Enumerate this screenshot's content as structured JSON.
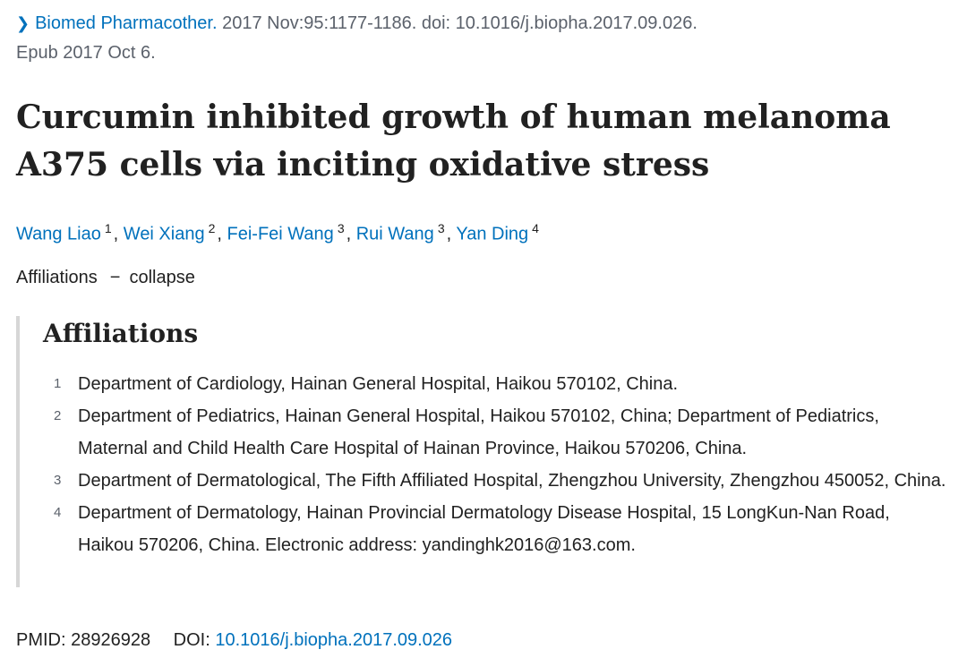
{
  "citation": {
    "journal": "Biomed Pharmacother.",
    "details": "2017 Nov:95:1177-1186. doi: 10.1016/j.biopha.2017.09.026.",
    "epub": "Epub 2017 Oct 6."
  },
  "title": "Curcumin inhibited growth of human melanoma A375 cells via inciting oxidative stress",
  "authors": [
    {
      "name": "Wang Liao",
      "aff": "1"
    },
    {
      "name": "Wei Xiang",
      "aff": "2"
    },
    {
      "name": "Fei-Fei Wang",
      "aff": "3"
    },
    {
      "name": "Rui Wang",
      "aff": "3"
    },
    {
      "name": "Yan Ding",
      "aff": "4"
    }
  ],
  "affiliations_toggle": {
    "label": "Affiliations",
    "dash": "−",
    "action": "collapse"
  },
  "affiliations": {
    "heading": "Affiliations",
    "items": [
      {
        "num": "1",
        "text": "Department of Cardiology, Hainan General Hospital, Haikou 570102, China."
      },
      {
        "num": "2",
        "text": "Department of Pediatrics, Hainan General Hospital, Haikou 570102, China; Department of Pediatrics, Maternal and Child Health Care Hospital of Hainan Province, Haikou 570206, China."
      },
      {
        "num": "3",
        "text": "Department of Dermatological, The Fifth Affiliated Hospital, Zhengzhou University, Zhengzhou 450052, China."
      },
      {
        "num": "4",
        "text": "Department of Dermatology, Hainan Provincial Dermatology Disease Hospital, 15 LongKun-Nan Road, Haikou 570206, China. Electronic address: yandinghk2016@163.com."
      }
    ]
  },
  "identifiers": {
    "pmid_label": "PMID:",
    "pmid": "28926928",
    "doi_label": "DOI:",
    "doi": "10.1016/j.biopha.2017.09.026"
  }
}
